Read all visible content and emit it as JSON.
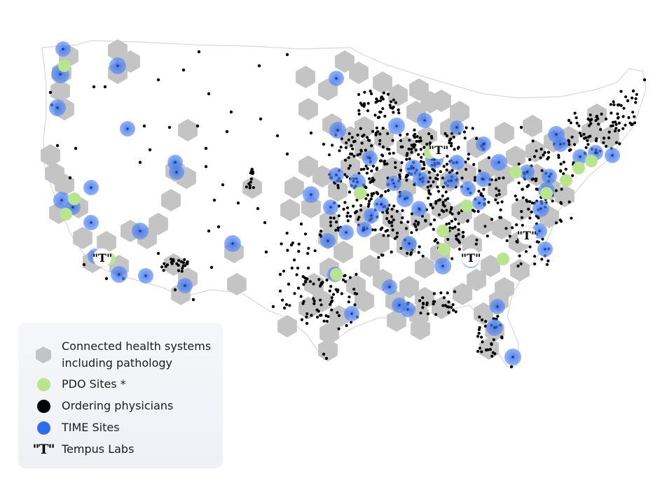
{
  "legend": {
    "connected": "Connected health systems including pathology",
    "connected_line1": "Connected health systems",
    "connected_line2": "including pathology",
    "pdo": "PDO Sites *",
    "ordering": "Ordering physicians",
    "time": "TIME Sites",
    "tempus": "Tempus Labs"
  },
  "colors": {
    "hexagon": "#c4c4c4",
    "pdo": "#b9e58f",
    "ordering": "#000000",
    "time": "#3f78ef",
    "tempus_marker_bg": "#ffffff"
  },
  "tempus_mark": "\"T\"",
  "icons": [
    "hexagon-icon",
    "green-dot-icon",
    "black-dot-icon",
    "blue-dot-icon",
    "tempus-t-icon"
  ]
}
